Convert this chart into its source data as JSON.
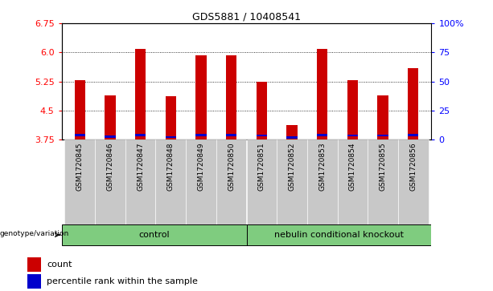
{
  "title": "GDS5881 / 10408541",
  "samples": [
    "GSM1720845",
    "GSM1720846",
    "GSM1720847",
    "GSM1720848",
    "GSM1720849",
    "GSM1720850",
    "GSM1720851",
    "GSM1720852",
    "GSM1720853",
    "GSM1720854",
    "GSM1720855",
    "GSM1720856"
  ],
  "count_values": [
    5.28,
    4.9,
    6.08,
    4.87,
    5.93,
    5.92,
    5.25,
    4.13,
    6.08,
    5.28,
    4.9,
    5.6
  ],
  "percentile_values": [
    3.87,
    3.83,
    3.87,
    3.82,
    3.87,
    3.87,
    3.86,
    3.8,
    3.87,
    3.86,
    3.86,
    3.87
  ],
  "ymin": 3.75,
  "ymax": 6.75,
  "yticks": [
    3.75,
    4.5,
    5.25,
    6.0,
    6.75
  ],
  "right_yticks": [
    0,
    25,
    50,
    75,
    100
  ],
  "right_ytick_labels": [
    "0",
    "25",
    "50",
    "75",
    "100%"
  ],
  "bar_color": "#CC0000",
  "percentile_color": "#0000CC",
  "bg_color": "#FFFFFF",
  "plot_bg_color": "#FFFFFF",
  "control_label": "control",
  "knockout_label": "nebulin conditional knockout",
  "genotype_label": "genotype/variation",
  "legend_count": "count",
  "legend_percentile": "percentile rank within the sample",
  "group_color": "#7FCC7F",
  "tick_bg_color": "#C0C0C0",
  "bar_width": 0.35,
  "n_control": 6,
  "n_knockout": 6
}
